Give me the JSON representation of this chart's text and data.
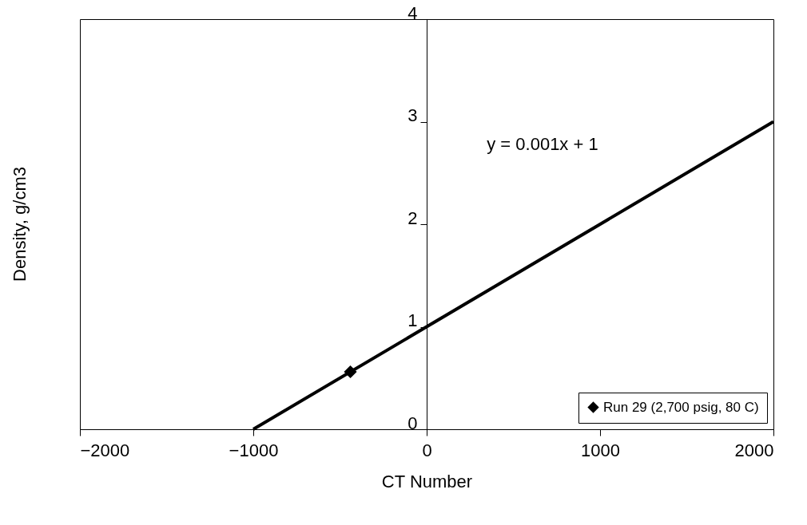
{
  "chart_data": {
    "type": "scatter",
    "xlabel": "CT Number",
    "ylabel": "Density, g/cm3",
    "xlim": [
      -2000,
      2000
    ],
    "ylim": [
      0,
      4
    ],
    "xticks": [
      -2000,
      -1000,
      0,
      1000,
      2000
    ],
    "yticks": [
      0,
      1,
      2,
      3,
      4
    ],
    "grid": false,
    "legend": "bottom right",
    "annotations": [
      "y = 0.001x + 1"
    ],
    "series": [
      {
        "name": "Run 29 (2,700 psig, 80 C)",
        "marker": "diamond",
        "color": "#000000",
        "x": [
          -440
        ],
        "values": [
          0.56
        ]
      },
      {
        "type": "line",
        "marker": "none",
        "color": "#000000",
        "x": [
          -1000,
          2000
        ],
        "values": [
          0,
          3
        ]
      }
    ]
  }
}
